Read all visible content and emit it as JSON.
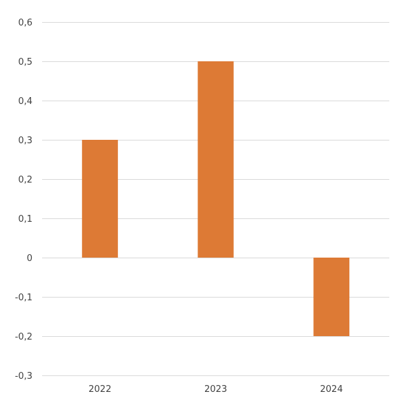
{
  "chart_data": {
    "type": "bar",
    "title": "",
    "xlabel": "",
    "ylabel": "",
    "categories": [
      "2022",
      "2023",
      "2024"
    ],
    "values": [
      0.3,
      0.5,
      -0.2
    ],
    "ylim": [
      -0.3,
      0.6
    ],
    "yticks": [
      0.6,
      0.5,
      0.4,
      0.3,
      0.2,
      0.1,
      0,
      -0.1,
      -0.2,
      -0.3
    ],
    "ytick_labels": [
      "0,6",
      "0,5",
      "0,4",
      "0,3",
      "0,2",
      "0,1",
      "0",
      "-0,1",
      "-0,2",
      "-0,3"
    ],
    "bar_color": "#dd7a35",
    "grid": true,
    "legend": "none"
  }
}
